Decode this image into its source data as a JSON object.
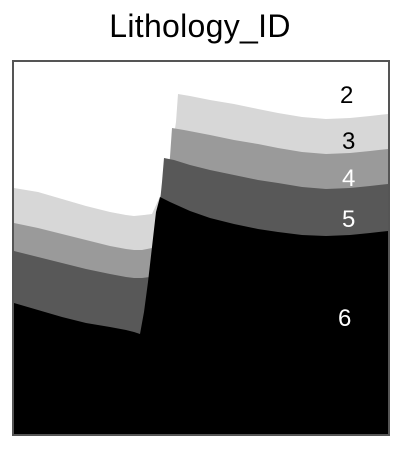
{
  "title": "Lithology_ID",
  "layers": [
    {
      "id": "2",
      "color": "#ffffff",
      "label_color": "#000000"
    },
    {
      "id": "3",
      "color": "#d7d7d7",
      "label_color": "#000000"
    },
    {
      "id": "4",
      "color": "#9a9a9a",
      "label_color": "#ffffff"
    },
    {
      "id": "5",
      "color": "#585858",
      "label_color": "#ffffff"
    },
    {
      "id": "6",
      "color": "#000000",
      "label_color": "#ffffff"
    }
  ],
  "border_color": "#555555"
}
